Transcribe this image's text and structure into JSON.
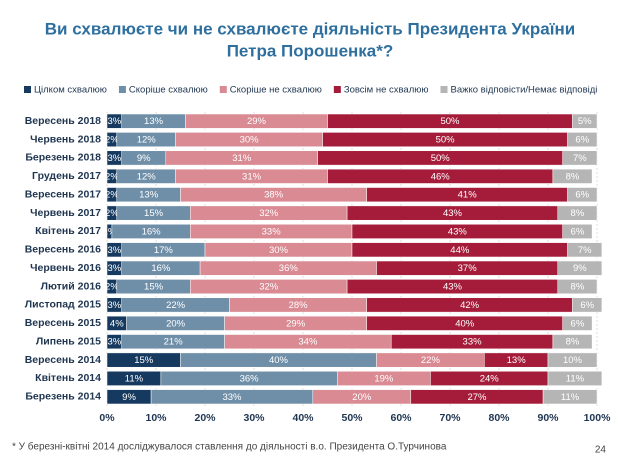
{
  "chart_data": {
    "type": "stacked-barh",
    "title": [
      "Ви схвалюєте чи не схвалюєте діяльність Президента України",
      "Петра Порошенка*?"
    ],
    "categories": [
      "Вересень 2018",
      "Червень 2018",
      "Березень 2018",
      "Грудень 2017",
      "Вересень 2017",
      "Червень 2017",
      "Квітень 2017",
      "Вересень 2016",
      "Червень 2016",
      "Лютий 2016",
      "Листопад 2015",
      "Вересень 2015",
      "Липень 2015",
      "Вересень 2014",
      "Квітень 2014",
      "Березень 2014"
    ],
    "series": [
      {
        "name": "Цілком схвалюю",
        "color": "#163a5f",
        "values": [
          3,
          2,
          3,
          2,
          2,
          2,
          1,
          3,
          3,
          2,
          3,
          4,
          3,
          15,
          11,
          9
        ],
        "value_labels": [
          "3%",
          "2%",
          "3%",
          "2%",
          "2%",
          "2%",
          "1%",
          "3%",
          "3%",
          "2%",
          "3%",
          "4%",
          "3%",
          "15%",
          "11%",
          "9%"
        ]
      },
      {
        "name": "Скоріше схвалюю",
        "color": "#6f8fa8",
        "values": [
          13,
          12,
          9,
          12,
          13,
          15,
          16,
          17,
          16,
          15,
          22,
          20,
          21,
          40,
          36,
          33
        ],
        "value_labels": [
          "13%",
          "12%",
          "9%",
          "12%",
          "13%",
          "15%",
          "16%",
          "17%",
          "16%",
          "15%",
          "22%",
          "20%",
          "21%",
          "40%",
          "36%",
          "33%"
        ]
      },
      {
        "name": "Скоріше не схвалюю",
        "color": "#d98a93",
        "values": [
          29,
          30,
          31,
          31,
          38,
          32,
          33,
          30,
          36,
          32,
          28,
          29,
          34,
          22,
          19,
          20
        ],
        "value_labels": [
          "29%",
          "30%",
          "31%",
          "31%",
          "38%",
          "32%",
          "33%",
          "30%",
          "36%",
          "32%",
          "28%",
          "29%",
          "34%",
          "22%",
          "19%",
          "20%"
        ]
      },
      {
        "name": "Зовсім не схвалюю",
        "color": "#a51c3a",
        "values": [
          50,
          50,
          50,
          46,
          41,
          43,
          43,
          44,
          37,
          43,
          42,
          40,
          33,
          13,
          24,
          27
        ],
        "value_labels": [
          "50%",
          "50%",
          "50%",
          "46%",
          "41%",
          "43%",
          "43%",
          "44%",
          "37%",
          "43%",
          "42%",
          "40%",
          "33%",
          "13%",
          "24%",
          "27%"
        ]
      },
      {
        "name": "Важко відповісти/Немає відповіді",
        "color": "#b5b5b5",
        "values": [
          5,
          6,
          7,
          8,
          6,
          8,
          6,
          7,
          9,
          8,
          6,
          6,
          8,
          10,
          11,
          11
        ],
        "value_labels": [
          "5%",
          "6%",
          "7%",
          "8%",
          "6%",
          "8%",
          "6%",
          "7%",
          "9%",
          "8%",
          "6%",
          "6%",
          "8%",
          "10%",
          "11%",
          "11%"
        ]
      }
    ],
    "xlim": [
      0,
      100
    ],
    "xticks": [
      {
        "value": 0,
        "label": "0%"
      },
      {
        "value": 10,
        "label": "10%"
      },
      {
        "value": 20,
        "label": "20%"
      },
      {
        "value": 30,
        "label": "30%"
      },
      {
        "value": 40,
        "label": "40%"
      },
      {
        "value": 50,
        "label": "50%"
      },
      {
        "value": 60,
        "label": "60%"
      },
      {
        "value": 70,
        "label": "70%"
      },
      {
        "value": 80,
        "label": "80%"
      },
      {
        "value": 90,
        "label": "90%"
      },
      {
        "value": 100,
        "label": "100%"
      }
    ],
    "grid": true,
    "footnote": "* У березні-квітні 2014 досліджувалося ставлення до діяльності в.о. Президента О.Турчинова",
    "page_number": "24"
  }
}
